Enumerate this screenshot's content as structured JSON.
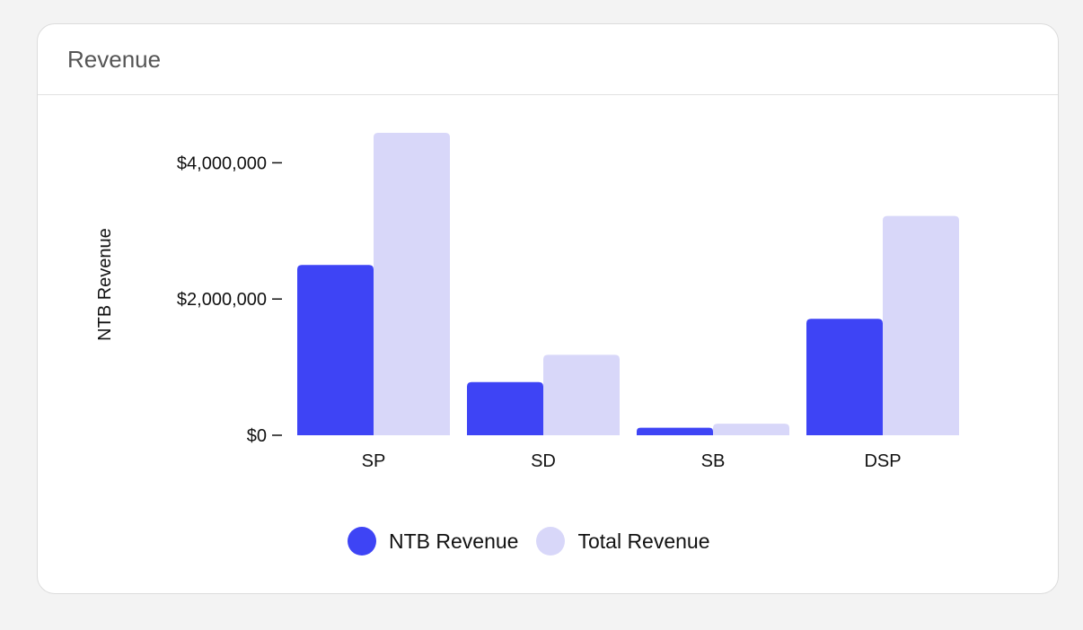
{
  "card": {
    "title": "Revenue"
  },
  "colors": {
    "ntb": "#3e44f5",
    "total": "#d8d7f9"
  },
  "chart_data": {
    "type": "bar",
    "categories": [
      "SP",
      "SD",
      "SB",
      "DSP"
    ],
    "series": [
      {
        "name": "NTB Revenue",
        "values": [
          2500000,
          780000,
          110000,
          1710000
        ]
      },
      {
        "name": "Total Revenue",
        "values": [
          4440000,
          1180000,
          170000,
          3220000
        ]
      }
    ],
    "ylabel": "NTB Revenue",
    "ylim": [
      0,
      4440000
    ],
    "yticks": [
      {
        "value": 0,
        "label": "$0"
      },
      {
        "value": 2000000,
        "label": "$2,000,000"
      },
      {
        "value": 4000000,
        "label": "$4,000,000"
      }
    ],
    "legend": "bottom-center",
    "grid": false
  }
}
